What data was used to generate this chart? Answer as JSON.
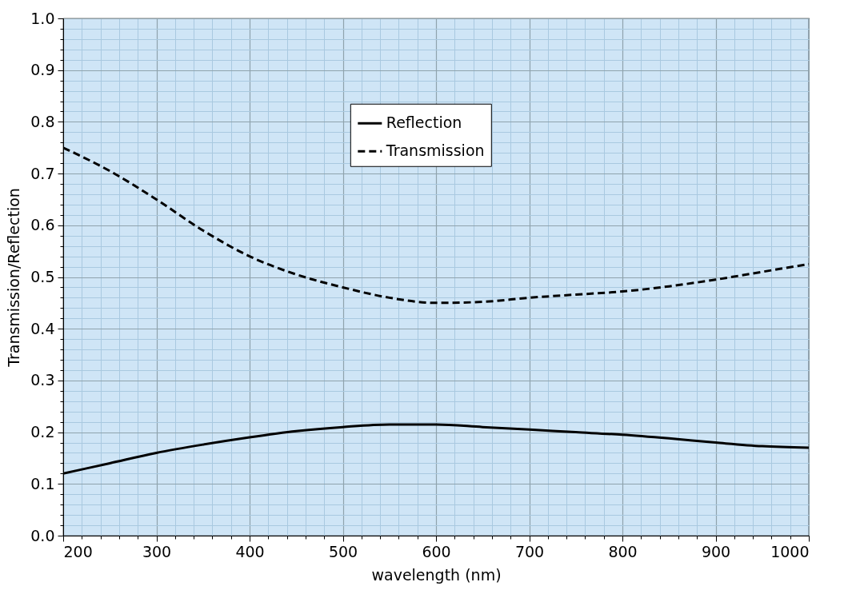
{
  "chart_data": {
    "type": "line",
    "xlabel": "wavelength (nm)",
    "ylabel": "Transmission/Reflection",
    "x": [
      200,
      250,
      300,
      350,
      400,
      450,
      500,
      550,
      600,
      650,
      700,
      750,
      800,
      850,
      900,
      950,
      1000
    ],
    "series": [
      {
        "name": "Reflection",
        "color": "#000000",
        "line_style": "solid",
        "values": [
          0.12,
          0.14,
          0.16,
          0.176,
          0.19,
          0.202,
          0.21,
          0.215,
          0.215,
          0.21,
          0.205,
          0.2,
          0.195,
          0.188,
          0.18,
          0.173,
          0.17
        ]
      },
      {
        "name": "Transmission",
        "color": "#000000",
        "line_style": "dashed",
        "values": [
          0.75,
          0.705,
          0.65,
          0.59,
          0.54,
          0.505,
          0.48,
          0.46,
          0.45,
          0.452,
          0.46,
          0.466,
          0.472,
          0.482,
          0.495,
          0.51,
          0.525
        ]
      }
    ],
    "xlim": [
      200,
      1000
    ],
    "xticks": [
      200,
      {
        "value": 220,
        "label": null
      },
      {
        "value": 240,
        "label": null
      },
      {
        "value": 260,
        "label": null
      },
      {
        "value": 280,
        "label": null
      },
      300,
      {
        "value": 320,
        "label": null
      },
      {
        "value": 340,
        "label": null
      },
      {
        "value": 360,
        "label": null
      },
      {
        "value": 380,
        "label": null
      },
      400,
      {
        "value": 420,
        "label": null
      },
      {
        "value": 440,
        "label": null
      },
      {
        "value": 460,
        "label": null
      },
      {
        "value": 480,
        "label": null
      },
      500,
      {
        "value": 520,
        "label": null
      },
      {
        "value": 540,
        "label": null
      },
      {
        "value": 560,
        "label": null
      },
      {
        "value": 580,
        "label": null
      },
      600,
      {
        "value": 620,
        "label": null
      },
      {
        "value": 640,
        "label": null
      },
      {
        "value": 660,
        "label": null
      },
      {
        "value": 680,
        "label": null
      },
      700,
      {
        "value": 720,
        "label": null
      },
      {
        "value": 740,
        "label": null
      },
      {
        "value": 760,
        "label": null
      },
      {
        "value": 780,
        "label": null
      },
      800,
      {
        "value": 820,
        "label": null
      },
      {
        "value": 840,
        "label": null
      },
      {
        "value": 860,
        "label": null
      },
      {
        "value": 880,
        "label": null
      },
      900,
      {
        "value": 920,
        "label": null
      },
      {
        "value": 940,
        "label": null
      },
      {
        "value": 960,
        "label": null
      },
      {
        "value": 980,
        "label": null
      },
      1000
    ],
    "ylim": [
      0,
      1
    ],
    "yticks": [
      {
        "value": 0,
        "label": "0.0"
      },
      {
        "value": 0.02,
        "label": null
      },
      {
        "value": 0.04,
        "label": null
      },
      {
        "value": 0.06,
        "label": null
      },
      {
        "value": 0.08,
        "label": null
      },
      0.1,
      {
        "value": 0.12,
        "label": null
      },
      {
        "value": 0.14,
        "label": null
      },
      {
        "value": 0.16,
        "label": null
      },
      {
        "value": 0.18,
        "label": null
      },
      0.2,
      {
        "value": 0.22,
        "label": null
      },
      {
        "value": 0.24,
        "label": null
      },
      {
        "value": 0.26,
        "label": null
      },
      {
        "value": 0.28,
        "label": null
      },
      0.3,
      {
        "value": 0.32,
        "label": null
      },
      {
        "value": 0.34,
        "label": null
      },
      {
        "value": 0.36,
        "label": null
      },
      {
        "value": 0.38,
        "label": null
      },
      0.4,
      {
        "value": 0.42,
        "label": null
      },
      {
        "value": 0.44,
        "label": null
      },
      {
        "value": 0.46,
        "label": null
      },
      {
        "value": 0.48,
        "label": null
      },
      0.5,
      {
        "value": 0.52,
        "label": null
      },
      {
        "value": 0.54,
        "label": null
      },
      {
        "value": 0.56,
        "label": null
      },
      {
        "value": 0.58,
        "label": null
      },
      0.6,
      {
        "value": 0.62,
        "label": null
      },
      {
        "value": 0.64,
        "label": null
      },
      {
        "value": 0.66,
        "label": null
      },
      {
        "value": 0.68,
        "label": null
      },
      0.7,
      {
        "value": 0.72,
        "label": null
      },
      {
        "value": 0.74,
        "label": null
      },
      {
        "value": 0.76,
        "label": null
      },
      {
        "value": 0.78,
        "label": null
      },
      0.8,
      {
        "value": 0.82,
        "label": null
      },
      {
        "value": 0.84,
        "label": null
      },
      {
        "value": 0.86,
        "label": null
      },
      {
        "value": 0.88,
        "label": null
      },
      0.9,
      {
        "value": 0.92,
        "label": null
      },
      {
        "value": 0.94,
        "label": null
      },
      {
        "value": 0.96,
        "label": null
      },
      {
        "value": 0.98,
        "label": null
      },
      {
        "value": 1,
        "label": "1.0"
      }
    ],
    "grid": true,
    "legend": "top"
  }
}
